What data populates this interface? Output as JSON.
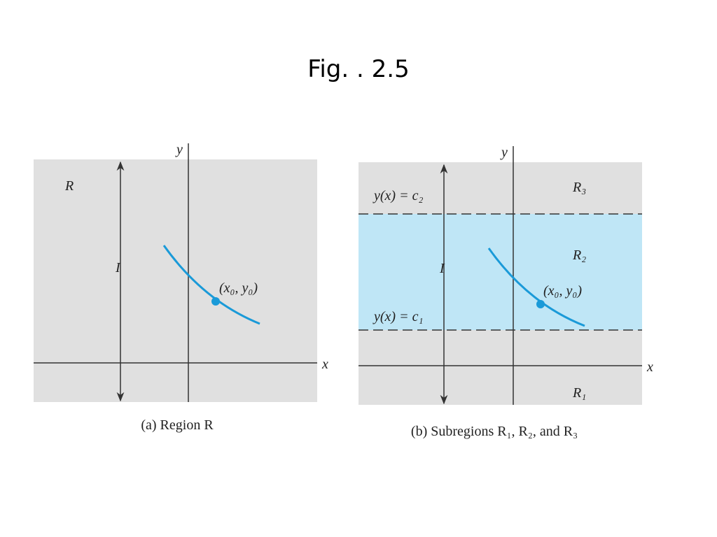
{
  "header": {
    "title": "Fig. .  2.5"
  },
  "panels": [
    {
      "caption": "(a) Region R",
      "labels": {
        "y_axis": "y",
        "x_axis": "x",
        "region": "R",
        "interval": "I",
        "point": "(x₀, y₀)"
      }
    },
    {
      "caption": "(b) Subregions R₁, R₂, and R₃",
      "labels": {
        "y_axis": "y",
        "x_axis": "x",
        "interval": "I",
        "point": "(x₀, y₀)",
        "upper_line": "y(x) = c₂",
        "lower_line": "y(x) = c₁",
        "region_top": "R₃",
        "region_middle": "R₂",
        "region_bottom": "R₁"
      }
    }
  ]
}
